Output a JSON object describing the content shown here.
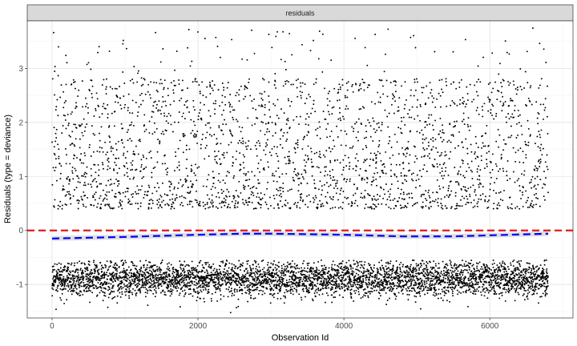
{
  "chart_data": {
    "type": "scatter",
    "title": "",
    "facet_label": "residuals",
    "xlabel": "Observation Id",
    "ylabel": "Residuals (type = deviance)",
    "xlim": [
      -340,
      7140
    ],
    "ylim": [
      -1.62,
      3.88
    ],
    "x_ticks": [
      0,
      2000,
      4000,
      6000
    ],
    "y_ticks": [
      -1,
      0,
      1,
      2,
      3
    ],
    "grid": true,
    "n_points": 6800,
    "point_color": "#000000",
    "reference_line": {
      "y": 0,
      "style": "dashed",
      "color": "#e41a1c"
    },
    "smooth": {
      "color": "#0000ff",
      "style": "dashed",
      "band_color": "#d9d9d9",
      "x": [
        0,
        1000,
        2000,
        2600,
        3000,
        4000,
        4800,
        5500,
        6000,
        6800
      ],
      "y": [
        -0.15,
        -0.12,
        -0.08,
        -0.06,
        -0.06,
        -0.08,
        -0.11,
        -0.11,
        -0.09,
        -0.06
      ]
    },
    "distribution": {
      "negative_cluster": {
        "fraction": 0.62,
        "center": -0.9,
        "spread": 0.16,
        "min": -1.55
      },
      "positive_cluster": {
        "min": 0.4,
        "max": 3.75
      }
    }
  }
}
